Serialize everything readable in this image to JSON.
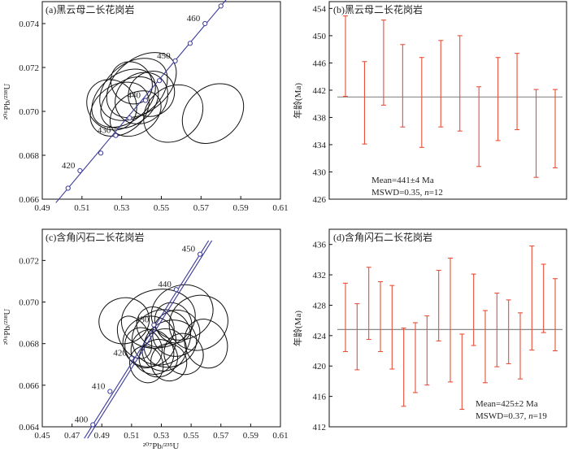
{
  "chart_data": [
    {
      "type": "scatter",
      "title": "(a)黑云母二长花岗岩",
      "xlabel": "",
      "ylabel": "²⁰⁶Pb/²³⁸U",
      "xlim": [
        0.49,
        0.61
      ],
      "ylim": [
        0.066,
        0.075
      ],
      "xticks": [
        "0.49",
        "0.51",
        "0.53",
        "0.55",
        "0.57",
        "0.59",
        "0.61"
      ],
      "yticks": [
        "0.066",
        "0.068",
        "0.070",
        "0.072",
        "0.074"
      ],
      "concordia": [
        {
          "x": 0.503,
          "y": 0.0665
        },
        {
          "x": 0.509,
          "y": 0.0673,
          "label": "420"
        },
        {
          "x": 0.5195,
          "y": 0.0681
        },
        {
          "x": 0.527,
          "y": 0.0689,
          "label": "430"
        },
        {
          "x": 0.534,
          "y": 0.0697
        },
        {
          "x": 0.542,
          "y": 0.0705,
          "label": "440"
        },
        {
          "x": 0.549,
          "y": 0.0714
        },
        {
          "x": 0.557,
          "y": 0.0723,
          "label": "450"
        },
        {
          "x": 0.5645,
          "y": 0.0731
        },
        {
          "x": 0.572,
          "y": 0.074,
          "label": "460"
        },
        {
          "x": 0.58,
          "y": 0.0748
        }
      ],
      "concordia_lines": 1,
      "ellipses": [
        {
          "cx": 0.531,
          "cy": 0.0706,
          "rx": 0.018,
          "ry": 0.0011,
          "rot": 38
        },
        {
          "cx": 0.536,
          "cy": 0.071,
          "rx": 0.019,
          "ry": 0.0012,
          "rot": 38
        },
        {
          "cx": 0.54,
          "cy": 0.0712,
          "rx": 0.02,
          "ry": 0.0012,
          "rot": 40
        },
        {
          "cx": 0.534,
          "cy": 0.0704,
          "rx": 0.016,
          "ry": 0.001,
          "rot": 36
        },
        {
          "cx": 0.529,
          "cy": 0.0701,
          "rx": 0.016,
          "ry": 0.0011,
          "rot": 36
        },
        {
          "cx": 0.54,
          "cy": 0.0706,
          "rx": 0.014,
          "ry": 0.0011,
          "rot": 40
        },
        {
          "cx": 0.537,
          "cy": 0.0699,
          "rx": 0.014,
          "ry": 0.0009,
          "rot": 35
        },
        {
          "cx": 0.525,
          "cy": 0.0703,
          "rx": 0.012,
          "ry": 0.0012,
          "rot": 42
        },
        {
          "cx": 0.545,
          "cy": 0.0708,
          "rx": 0.012,
          "ry": 0.001,
          "rot": 38
        },
        {
          "cx": 0.535,
          "cy": 0.0713,
          "rx": 0.01,
          "ry": 0.001,
          "rot": 40
        },
        {
          "cx": 0.556,
          "cy": 0.0699,
          "rx": 0.016,
          "ry": 0.0012,
          "rot": 40
        },
        {
          "cx": 0.576,
          "cy": 0.0699,
          "rx": 0.017,
          "ry": 0.0012,
          "rot": 42
        }
      ]
    },
    {
      "type": "bar",
      "subtype": "error-bars",
      "title": "(b)黑云母二长花岗岩",
      "ylabel": "年龄(Ma)",
      "ylim": [
        426,
        455
      ],
      "yticks": [
        "426",
        "430",
        "434",
        "438",
        "442",
        "446",
        "450",
        "454"
      ],
      "mean": 441,
      "mean_text": "Mean=441±4 Ma",
      "mswd_text": "MSWD=0.35, ",
      "n_var": "n",
      "n_text": "=12",
      "series": [
        {
          "low": 441.1,
          "high": 452.9
        },
        {
          "low": 434.1,
          "high": 446.2
        },
        {
          "low": 439.8,
          "high": 452.3
        },
        {
          "low": 436.6,
          "high": 448.7
        },
        {
          "low": 433.6,
          "high": 446.8
        },
        {
          "low": 436.6,
          "high": 449.3
        },
        {
          "low": 436.0,
          "high": 450.0
        },
        {
          "low": 430.8,
          "high": 442.5
        },
        {
          "low": 434.6,
          "high": 446.8
        },
        {
          "low": 436.2,
          "high": 447.4
        },
        {
          "low": 429.2,
          "high": 442.1
        },
        {
          "low": 430.6,
          "high": 442.1
        }
      ],
      "colors": {
        "bar": "#e8503a",
        "mean": "#8a8a8a"
      }
    },
    {
      "type": "scatter",
      "title": "(c)含角闪石二长花岗岩",
      "xlabel": "²⁰⁷Pb/²³⁵U",
      "ylabel": "²⁰⁶Pb/²³⁸U",
      "xlim": [
        0.45,
        0.61
      ],
      "ylim": [
        0.064,
        0.0735
      ],
      "xticks": [
        "0.45",
        "0.47",
        "0.49",
        "0.51",
        "0.53",
        "0.55",
        "0.57",
        "0.59",
        "0.61"
      ],
      "yticks": [
        "0.064",
        "0.066",
        "0.068",
        "0.070",
        "0.072"
      ],
      "concordia": [
        {
          "x": 0.484,
          "y": 0.0641,
          "label": "400"
        },
        {
          "x": 0.4955,
          "y": 0.0657,
          "label": "410"
        },
        {
          "x": 0.51,
          "y": 0.0673,
          "label": "420"
        },
        {
          "x": 0.525,
          "y": 0.0689,
          "label": "430"
        },
        {
          "x": 0.54,
          "y": 0.0706,
          "label": "440"
        },
        {
          "x": 0.556,
          "y": 0.0723,
          "label": "450"
        }
      ],
      "concordia_lines": 2,
      "ellipses": [
        {
          "cx": 0.505,
          "cy": 0.0691,
          "rx": 0.017,
          "ry": 0.0011,
          "rot": 15
        },
        {
          "cx": 0.528,
          "cy": 0.0692,
          "rx": 0.025,
          "ry": 0.0014,
          "rot": 12
        },
        {
          "cx": 0.544,
          "cy": 0.0695,
          "rx": 0.021,
          "ry": 0.0013,
          "rot": 20
        },
        {
          "cx": 0.555,
          "cy": 0.069,
          "rx": 0.02,
          "ry": 0.0013,
          "rot": 25
        },
        {
          "cx": 0.522,
          "cy": 0.0681,
          "rx": 0.018,
          "ry": 0.0012,
          "rot": 25
        },
        {
          "cx": 0.53,
          "cy": 0.0683,
          "rx": 0.02,
          "ry": 0.0013,
          "rot": 28
        },
        {
          "cx": 0.536,
          "cy": 0.068,
          "rx": 0.018,
          "ry": 0.0011,
          "rot": 24
        },
        {
          "cx": 0.524,
          "cy": 0.0676,
          "rx": 0.014,
          "ry": 0.0011,
          "rot": 30
        },
        {
          "cx": 0.518,
          "cy": 0.0678,
          "rx": 0.012,
          "ry": 0.001,
          "rot": 30
        },
        {
          "cx": 0.532,
          "cy": 0.0677,
          "rx": 0.015,
          "ry": 0.001,
          "rot": 26
        },
        {
          "cx": 0.528,
          "cy": 0.0673,
          "rx": 0.013,
          "ry": 0.0009,
          "rot": 22
        },
        {
          "cx": 0.54,
          "cy": 0.0685,
          "rx": 0.016,
          "ry": 0.0011,
          "rot": 30
        },
        {
          "cx": 0.52,
          "cy": 0.067,
          "rx": 0.011,
          "ry": 0.0009,
          "rot": 24
        },
        {
          "cx": 0.535,
          "cy": 0.0671,
          "rx": 0.012,
          "ry": 0.0009,
          "rot": 20
        },
        {
          "cx": 0.512,
          "cy": 0.0683,
          "rx": 0.01,
          "ry": 0.0011,
          "rot": 30
        },
        {
          "cx": 0.56,
          "cy": 0.068,
          "rx": 0.014,
          "ry": 0.0012,
          "rot": 22
        },
        {
          "cx": 0.545,
          "cy": 0.0675,
          "rx": 0.013,
          "ry": 0.001,
          "rot": 26
        },
        {
          "cx": 0.526,
          "cy": 0.0688,
          "rx": 0.012,
          "ry": 0.001,
          "rot": 32
        },
        {
          "cx": 0.538,
          "cy": 0.069,
          "rx": 0.012,
          "ry": 0.001,
          "rot": 28
        }
      ]
    },
    {
      "type": "bar",
      "subtype": "error-bars",
      "title": "(d)含角闪石二长花岗岩",
      "ylabel": "年龄(Ma)",
      "ylim": [
        412,
        438
      ],
      "yticks": [
        "412",
        "416",
        "420",
        "424",
        "428",
        "432",
        "436"
      ],
      "mean": 424.8,
      "mean_text": "Mean=425±2 Ma",
      "mswd_text": "MSWD=0.37, ",
      "n_var": "n",
      "n_text": "=19",
      "series": [
        {
          "low": 421.9,
          "high": 430.9
        },
        {
          "low": 419.5,
          "high": 428.2
        },
        {
          "low": 423.5,
          "high": 433.0
        },
        {
          "low": 421.9,
          "high": 431.1
        },
        {
          "low": 419.6,
          "high": 430.6
        },
        {
          "low": 414.7,
          "high": 425.0
        },
        {
          "low": 416.5,
          "high": 425.7
        },
        {
          "low": 417.5,
          "high": 426.6
        },
        {
          "low": 423.3,
          "high": 432.6
        },
        {
          "low": 417.9,
          "high": 434.2
        },
        {
          "low": 414.3,
          "high": 424.2
        },
        {
          "low": 422.7,
          "high": 432.1
        },
        {
          "low": 417.8,
          "high": 427.3
        },
        {
          "low": 419.9,
          "high": 429.6
        },
        {
          "low": 420.3,
          "high": 428.7
        },
        {
          "low": 418.3,
          "high": 427.0
        },
        {
          "low": 422.1,
          "high": 435.8
        },
        {
          "low": 424.4,
          "high": 433.4
        },
        {
          "low": 422.0,
          "high": 431.5
        }
      ],
      "colors": {
        "bar": "#e8503a",
        "mean": "#8a8a8a"
      }
    }
  ],
  "colors": {
    "concordia": "#3b3b9a",
    "ellipse": "#111111",
    "frame": "#111111"
  }
}
